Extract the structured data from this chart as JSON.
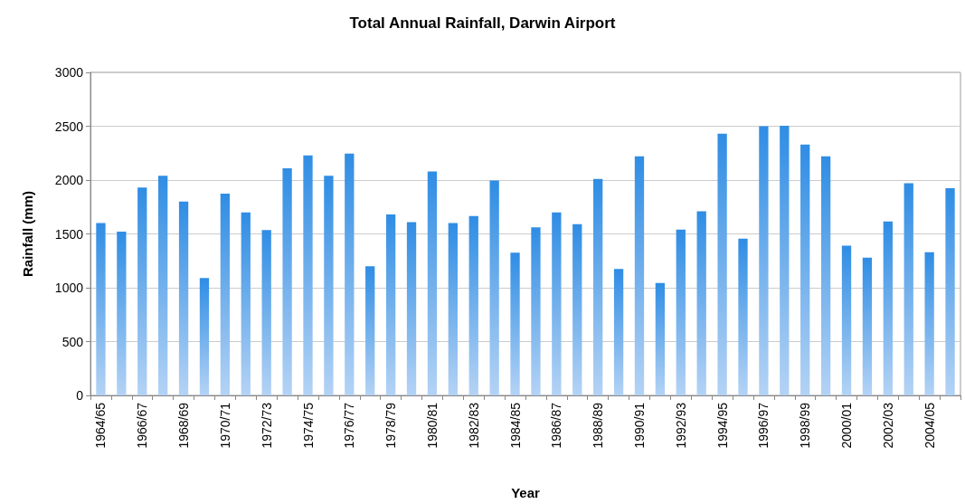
{
  "chart_data": {
    "type": "bar",
    "title": "Total Annual Rainfall, Darwin Airport",
    "xlabel": "Year",
    "ylabel": "Rainfall (mm)",
    "categories": [
      "1964/65",
      null,
      "1966/67",
      null,
      "1968/69",
      null,
      "1970/71",
      null,
      "1972/73",
      null,
      "1974/75",
      null,
      "1976/77",
      null,
      "1978/79",
      null,
      "1980/81",
      null,
      "1982/83",
      null,
      "1984/85",
      null,
      "1986/87",
      null,
      "1988/89",
      null,
      "1990/91",
      null,
      "1992/93",
      null,
      "1994/95",
      null,
      "1996/97",
      null,
      "1998/99",
      null,
      "2000/01",
      null,
      "2002/03",
      null,
      "2004/05",
      null
    ],
    "values": [
      1600,
      1520,
      1930,
      2040,
      1800,
      1090,
      1875,
      1700,
      1535,
      2110,
      2230,
      2040,
      2245,
      1200,
      1680,
      1610,
      2080,
      1600,
      1665,
      1995,
      1325,
      1560,
      1700,
      1590,
      2010,
      1175,
      2220,
      1045,
      1540,
      1710,
      2430,
      1455,
      2500,
      2505,
      2330,
      2220,
      1390,
      1280,
      1615,
      1970,
      1330,
      1925
    ],
    "color": "#2f8de4",
    "ylim": [
      0,
      3000
    ],
    "yticks": [
      0,
      500,
      1000,
      1500,
      2000,
      2500,
      3000
    ],
    "grid": "y"
  }
}
